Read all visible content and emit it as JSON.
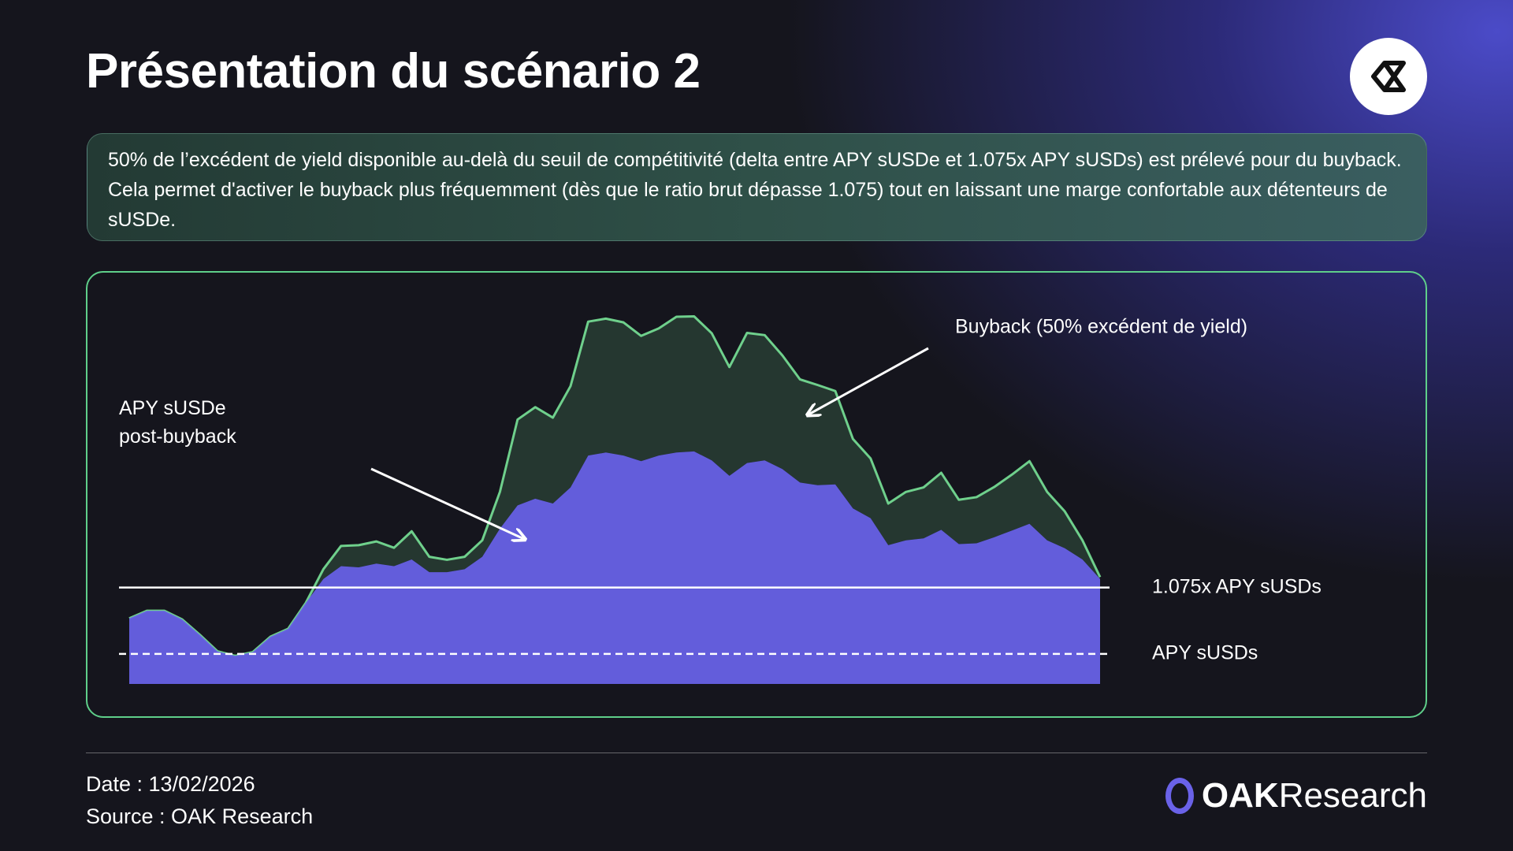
{
  "header": {
    "title": "Présentation du scénario 2"
  },
  "description": "50% de l’excédent de yield disponible au-delà du seuil de compétitivité (delta entre APY sUSDe et 1.075x APY sUSDs) est prélevé pour du buyback. Cela permet d'activer le buyback plus fréquemment (dès que le ratio brut dépasse 1.075) tout en laissant une marge confortable aux détenteurs de sUSDe.",
  "chart_data": {
    "type": "area",
    "stacked": true,
    "ylim": [
      0,
      100
    ],
    "series": [
      {
        "name": "APY sUSDe post-buyback",
        "color": "#6761e6",
        "values": [
          17.5,
          19.5,
          19.5,
          17.2,
          13.1,
          8.7,
          7.5,
          8.5,
          12.6,
          14.7,
          21.6,
          28.0,
          31.4,
          31.1,
          32.1,
          31.4,
          33.2,
          29.8,
          29.8,
          30.6,
          33.9,
          41.4,
          47.6,
          49.4,
          48.1,
          52.4,
          60.9,
          61.7,
          60.9,
          59.4,
          60.9,
          61.7,
          62.0,
          59.6,
          55.5,
          58.9,
          59.6,
          57.3,
          53.7,
          53.0,
          53.2,
          46.8,
          44.2,
          37.0,
          38.3,
          38.8,
          41.1,
          37.3,
          37.5,
          39.1,
          40.9,
          42.7,
          38.3,
          36.2,
          33.2,
          28.0
        ]
      },
      {
        "name": "Buyback (50% excédent de yield)",
        "color": "#6fd08c",
        "values": [
          0,
          0,
          0,
          0,
          0,
          0,
          0,
          0,
          0,
          0,
          0,
          2.6,
          5.4,
          5.9,
          5.9,
          4.9,
          7.5,
          4.1,
          3.3,
          3.3,
          4.4,
          9.8,
          22.9,
          24.4,
          22.9,
          27.0,
          35.7,
          35.7,
          35.5,
          33.4,
          33.9,
          36.2,
          36.0,
          33.9,
          29.0,
          34.7,
          33.4,
          30.3,
          27.5,
          26.7,
          24.9,
          18.5,
          15.9,
          11.1,
          12.9,
          13.6,
          15.2,
          11.8,
          12.3,
          13.4,
          14.9,
          16.7,
          12.9,
          9.8,
          5.1,
          0.5
        ]
      }
    ],
    "reference_lines": [
      {
        "label": "1.075x APY sUSDs",
        "value": 25.7,
        "style": "solid",
        "color": "#ffffff"
      },
      {
        "label": "APY sUSDs",
        "value": 8.0,
        "style": "dashed",
        "color": "#ffffff"
      }
    ]
  },
  "footer": {
    "date": "Date : 13/02/2026",
    "source": "Source : OAK Research",
    "brand": [
      "OAK",
      "Research"
    ]
  }
}
